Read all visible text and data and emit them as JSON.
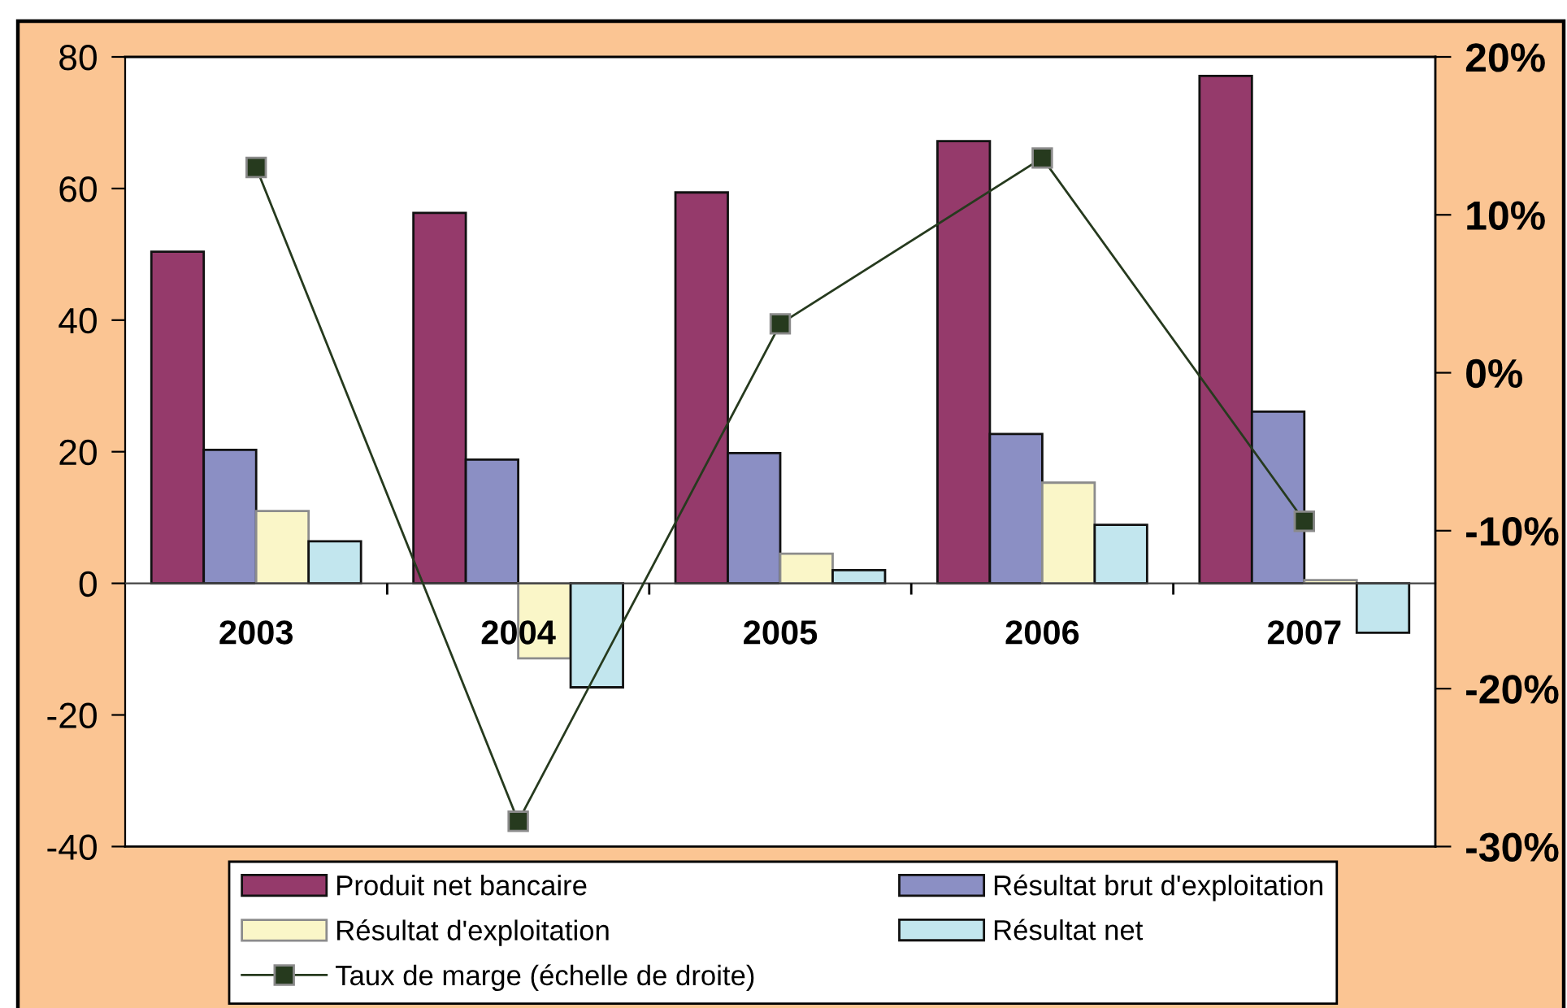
{
  "chart_data": {
    "type": "bar",
    "categories": [
      "2003",
      "2004",
      "2005",
      "2006",
      "2007"
    ],
    "series": [
      {
        "name": "Produit net bancaire",
        "color": "#953a6b",
        "values": [
          50.4,
          56.3,
          59.4,
          67.2,
          77.1
        ]
      },
      {
        "name": "Résultat brut d'exploitation",
        "color": "#8b8fc4",
        "values": [
          20.3,
          18.8,
          19.8,
          22.7,
          26.1
        ]
      },
      {
        "name": "Résultat d'exploitation",
        "color": "#faf6c8",
        "values": [
          11.0,
          -11.4,
          4.5,
          15.3,
          0.5
        ]
      },
      {
        "name": "Résultat net",
        "color": "#c2e6ee",
        "values": [
          6.4,
          -15.8,
          2.0,
          8.9,
          -7.5
        ]
      },
      {
        "name": "Taux de marge (échelle de droite)",
        "type": "line",
        "axis": "y2",
        "color": "#263a1e",
        "marker": "square",
        "line_style": "solid",
        "values": [
          13.0,
          -28.4,
          3.1,
          13.6,
          -9.4
        ]
      }
    ],
    "ylim": [
      -40,
      80
    ],
    "yticks": [
      -40,
      -20,
      0,
      20,
      40,
      60,
      80
    ],
    "y2lim": [
      -30,
      20
    ],
    "y2ticks": [
      {
        "value": -30,
        "label": "-30%"
      },
      {
        "value": -20,
        "label": "-20%"
      },
      {
        "value": -10,
        "label": "-10%"
      },
      {
        "value": 0,
        "label": "0%"
      },
      {
        "value": 10,
        "label": "10%"
      },
      {
        "value": 20,
        "label": "20%"
      }
    ],
    "legend": "bottom"
  }
}
